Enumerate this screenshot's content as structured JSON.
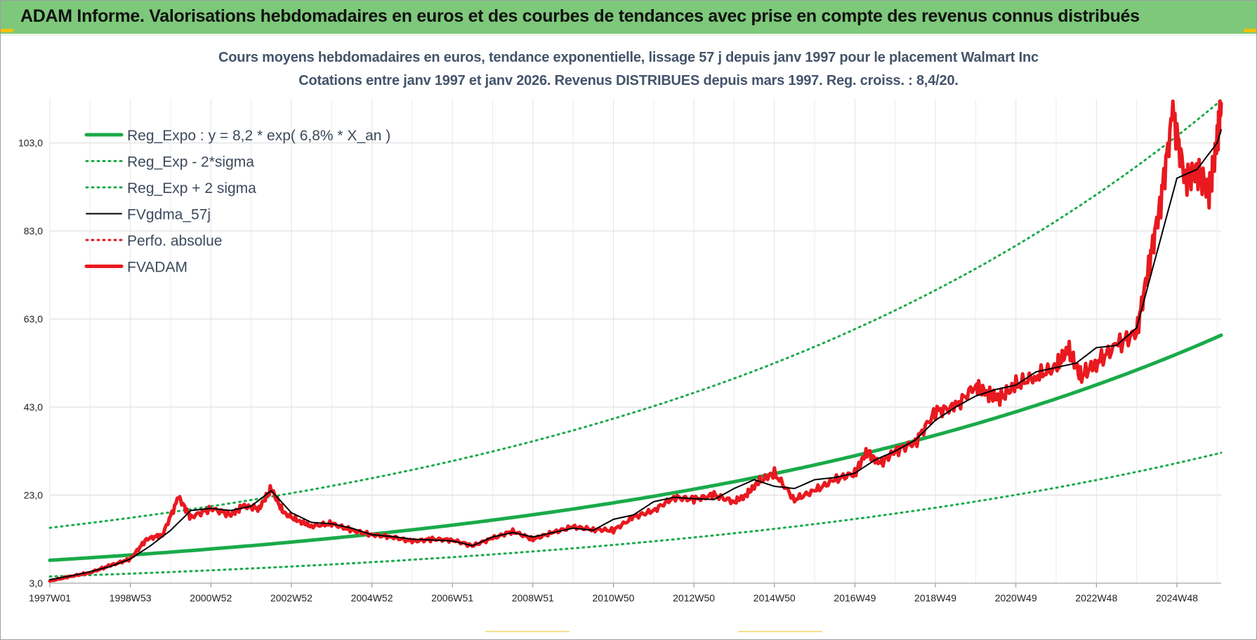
{
  "banner": {
    "title": "ADAM Informe. Valorisations hebdomadaires en euros et des courbes de tendances avec prise en compte des revenus connus distribués"
  },
  "chart_data": {
    "type": "line",
    "title": "Cours moyens hebdomadaires en euros, tendance exponentielle, lissage 57 j depuis janv 1997  pour le placement Walmart Inc",
    "subtitle": "Cotations entre janv 1997 et janv 2026. Revenus DISTRIBUES depuis mars 1997.  Reg. croiss. : 8,4/20.",
    "xlabel": "",
    "ylabel": "",
    "x_range": [
      1997.0,
      2026.1
    ],
    "ylim": [
      3,
      113
    ],
    "y_ticks": [
      3,
      23,
      43,
      63,
      83,
      103
    ],
    "y_tick_labels": [
      "3,0",
      "23,0",
      "43,0",
      "63,0",
      "83,0",
      "103,0"
    ],
    "x_ticks": [
      1997.0,
      1999.0,
      2001.0,
      2003.0,
      2005.0,
      2007.0,
      2009.0,
      2011.0,
      2013.0,
      2015.0,
      2017.0,
      2019.0,
      2021.0,
      2023.0,
      2025.0
    ],
    "x_tick_labels": [
      "1997W01",
      "1998W53",
      "2000W52",
      "2002W52",
      "2004W52",
      "2006W51",
      "2008W51",
      "2010W50",
      "2012W50",
      "2014W50",
      "2016W49",
      "2018W49",
      "2020W49",
      "2022W48",
      "2024W48"
    ],
    "grid": true,
    "legend_position": "top-left",
    "colors": {
      "regression": "#1aaa4a",
      "band": "#1aaa4a",
      "smooth": "#000000",
      "perf": "#e0191f",
      "fvadam": "#e8191f"
    },
    "regression_model": {
      "a": 8.2,
      "rate_pct": 6.8,
      "x0": 1997.0,
      "band_low_factor": 0.55,
      "band_high_factor": 1.9
    },
    "series": [
      {
        "name": "Reg_Expo : y = 8,2 * exp( 6,8% *  X_an )",
        "style": "solid-thick",
        "color": "#1aaa4a",
        "x": [
          1997.0,
          2000.0,
          2003.0,
          2006.0,
          2009.0,
          2012.0,
          2015.0,
          2018.0,
          2021.0,
          2024.0,
          2026.1
        ],
        "values": [
          8.2,
          10.0,
          12.2,
          14.9,
          18.1,
          22.1,
          27.0,
          32.9,
          40.1,
          48.9,
          56.4
        ]
      },
      {
        "name": "Reg_Exp - 2*sigma",
        "style": "dotted",
        "color": "#1aaa4a",
        "x": [
          1997.0,
          2000.0,
          2003.0,
          2006.0,
          2009.0,
          2012.0,
          2015.0,
          2018.0,
          2021.0,
          2024.0,
          2026.1
        ],
        "values": [
          4.5,
          5.5,
          6.7,
          8.2,
          10.0,
          12.2,
          14.8,
          18.1,
          22.1,
          26.9,
          31.0
        ]
      },
      {
        "name": "Reg_Exp + 2 sigma",
        "style": "dotted",
        "color": "#1aaa4a",
        "x": [
          1997.0,
          2000.0,
          2003.0,
          2006.0,
          2009.0,
          2012.0,
          2015.0,
          2018.0,
          2021.0,
          2024.0,
          2026.1
        ],
        "values": [
          15.6,
          19.0,
          23.2,
          28.3,
          34.4,
          42.0,
          51.3,
          62.5,
          76.2,
          92.9,
          107.2
        ]
      },
      {
        "name": "FVgdma_57j",
        "style": "solid-thin",
        "color": "#000000",
        "x": [
          1997.0,
          1997.5,
          1998.0,
          1998.5,
          1999.0,
          1999.5,
          2000.0,
          2000.5,
          2001.0,
          2001.5,
          2002.0,
          2002.5,
          2003.0,
          2003.5,
          2004.0,
          2004.5,
          2005.0,
          2005.5,
          2006.0,
          2006.5,
          2007.0,
          2007.5,
          2008.0,
          2008.5,
          2009.0,
          2009.5,
          2010.0,
          2010.5,
          2011.0,
          2011.5,
          2012.0,
          2012.5,
          2013.0,
          2013.5,
          2014.0,
          2014.5,
          2015.0,
          2015.5,
          2016.0,
          2016.5,
          2017.0,
          2017.5,
          2018.0,
          2018.5,
          2019.0,
          2019.5,
          2020.0,
          2020.5,
          2021.0,
          2021.5,
          2022.0,
          2022.5,
          2023.0,
          2023.5,
          2024.0,
          2024.5,
          2025.0,
          2025.5,
          2026.0,
          2026.1
        ],
        "values": [
          3.8,
          4.6,
          5.6,
          6.8,
          8.5,
          11.5,
          15.0,
          19.5,
          20.0,
          19.5,
          20.5,
          24.0,
          19.0,
          16.8,
          16.5,
          15.5,
          14.0,
          13.6,
          13.0,
          12.8,
          12.6,
          11.5,
          13.5,
          14.5,
          13.5,
          14.5,
          15.5,
          15.0,
          17.5,
          18.5,
          21.5,
          22.5,
          22.2,
          22.0,
          24.5,
          26.5,
          25.0,
          24.5,
          26.5,
          27.0,
          28.0,
          31.0,
          33.0,
          35.5,
          40.0,
          43.0,
          45.5,
          47.0,
          48.0,
          51.0,
          52.0,
          53.0,
          56.5,
          57.0,
          61.0,
          78.0,
          95.0,
          97.0,
          103.0,
          106.0
        ]
      },
      {
        "name": "Perfo. absolue",
        "style": "dotted",
        "color": "#e0191f",
        "x": [],
        "values": []
      },
      {
        "name": "FVADAM",
        "style": "solid-thick",
        "color": "#e8191f",
        "x": [
          1997.0,
          1997.5,
          1998.0,
          1998.5,
          1999.0,
          1999.4,
          1999.8,
          2000.2,
          2000.5,
          2001.0,
          2001.5,
          2001.8,
          2002.2,
          2002.5,
          2002.8,
          2003.2,
          2003.5,
          2004.0,
          2004.5,
          2005.0,
          2005.5,
          2006.0,
          2006.5,
          2007.0,
          2007.5,
          2008.0,
          2008.5,
          2009.0,
          2009.5,
          2010.0,
          2010.5,
          2011.0,
          2011.5,
          2012.0,
          2012.5,
          2013.0,
          2013.5,
          2014.0,
          2014.3,
          2014.6,
          2015.0,
          2015.5,
          2016.0,
          2016.5,
          2017.0,
          2017.3,
          2017.6,
          2018.0,
          2018.5,
          2019.0,
          2019.5,
          2020.0,
          2020.3,
          2020.6,
          2021.0,
          2021.5,
          2022.0,
          2022.3,
          2022.6,
          2023.0,
          2023.5,
          2024.0,
          2024.3,
          2024.6,
          2024.9,
          2025.2,
          2025.5,
          2025.8,
          2026.0,
          2026.1
        ],
        "values": [
          3.5,
          4.5,
          5.4,
          7.0,
          8.5,
          13.0,
          14.0,
          22.5,
          18.0,
          20.0,
          18.5,
          20.5,
          20.0,
          24.5,
          19.0,
          17.0,
          16.0,
          16.5,
          15.0,
          14.0,
          13.5,
          12.5,
          13.0,
          12.8,
          11.5,
          13.2,
          14.8,
          13.0,
          14.5,
          15.8,
          15.2,
          15.0,
          18.0,
          19.5,
          22.5,
          22.0,
          23.0,
          21.5,
          23.0,
          26.0,
          28.0,
          22.0,
          24.0,
          26.5,
          28.0,
          33.0,
          30.0,
          33.0,
          35.0,
          42.0,
          43.0,
          48.0,
          46.0,
          45.0,
          48.0,
          50.0,
          52.0,
          56.0,
          50.0,
          53.0,
          57.0,
          60.0,
          75.0,
          90.0,
          110.0,
          95.0,
          97.0,
          92.0,
          103.0,
          112.0
        ]
      }
    ]
  }
}
